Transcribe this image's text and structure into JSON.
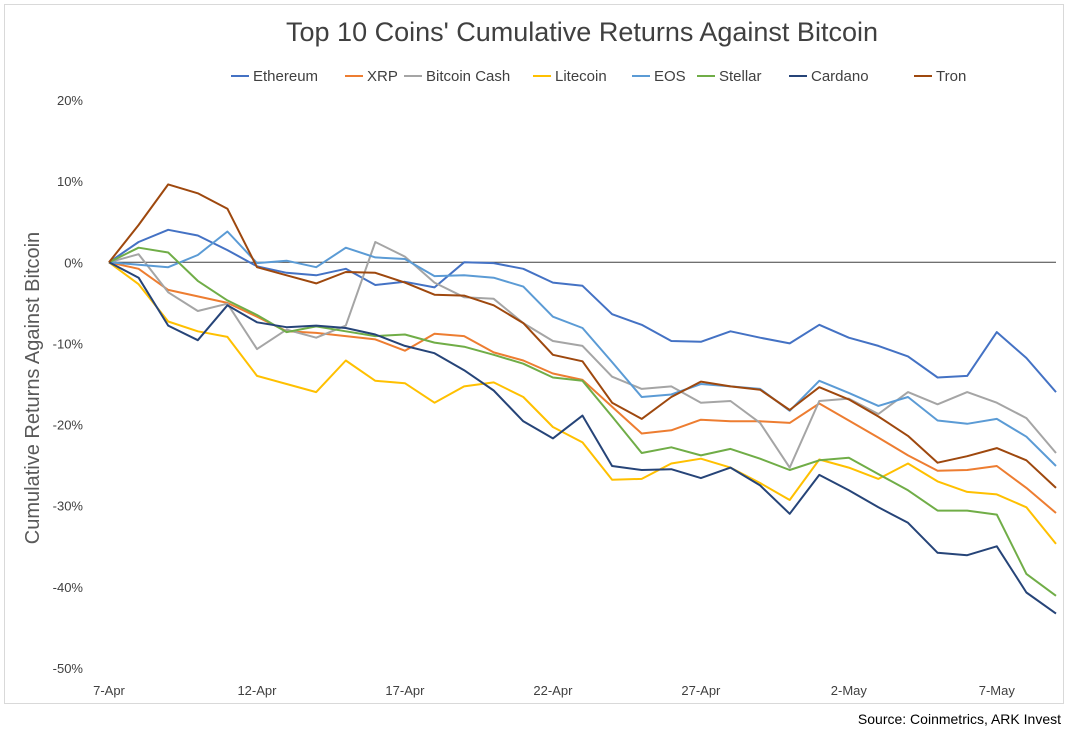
{
  "source_note": "Source: Coinmetrics, ARK Invest",
  "chart_data": {
    "type": "line",
    "title": "Top 10 Coins' Cumulative Returns Against Bitcoin",
    "xlabel": "",
    "ylabel": "Cumulative Returns Against Bitcoin",
    "ylim": [
      -50,
      20
    ],
    "yticks": [
      20,
      10,
      0,
      -10,
      -20,
      -30,
      -40,
      -50
    ],
    "ytick_format": "percent",
    "x_tick_labels": [
      "7-Apr",
      "12-Apr",
      "17-Apr",
      "22-Apr",
      "27-Apr",
      "2-May",
      "7-May"
    ],
    "x_tick_positions": [
      0,
      5,
      10,
      15,
      20,
      25,
      30
    ],
    "x": [
      0,
      1,
      2,
      3,
      4,
      5,
      6,
      7,
      8,
      9,
      10,
      11,
      12,
      13,
      14,
      15,
      16,
      17,
      18,
      19,
      20,
      21,
      22,
      23,
      24,
      25,
      26,
      27,
      28,
      29,
      30,
      31,
      32
    ],
    "legend_position": "top",
    "grid": false,
    "series": [
      {
        "name": "Ethereum",
        "color": "#4472C4",
        "values": [
          0,
          2.5,
          4,
          3.3,
          1.5,
          -0.5,
          -1.3,
          -1.6,
          -0.8,
          -2.8,
          -2.4,
          -3.1,
          0,
          -0.1,
          -0.8,
          -2.5,
          -2.9,
          -6.4,
          -7.7,
          -9.7,
          -9.8,
          -8.5,
          -9.3,
          -10,
          -7.7,
          -9.3,
          -10.3,
          -11.6,
          -14.2,
          -14,
          -8.6,
          -11.8,
          -16
        ]
      },
      {
        "name": "XRP",
        "color": "#ED7D31",
        "values": [
          0,
          -0.8,
          -3.4,
          -4.2,
          -5,
          -6.7,
          -8.5,
          -8.7,
          -9.1,
          -9.5,
          -10.9,
          -8.8,
          -9.1,
          -11.1,
          -12.1,
          -13.7,
          -14.5,
          -17.8,
          -21.1,
          -20.7,
          -19.4,
          -19.6,
          -19.6,
          -19.8,
          -17.4,
          -19.5,
          -21.6,
          -23.8,
          -25.7,
          -25.6,
          -25.1,
          -27.8,
          -30.9
        ]
      },
      {
        "name": "Bitcoin Cash",
        "color": "#A5A5A5",
        "values": [
          0,
          1,
          -3.7,
          -6,
          -5.1,
          -10.7,
          -8.3,
          -9.3,
          -7.8,
          2.5,
          0.7,
          -2.5,
          -4.3,
          -4.5,
          -7.5,
          -9.7,
          -10.3,
          -14.1,
          -15.6,
          -15.3,
          -17.3,
          -17.1,
          -19.8,
          -25.3,
          -17.1,
          -16.8,
          -18.7,
          -16,
          -17.5,
          -16,
          -17.3,
          -19.2,
          -23.5
        ]
      },
      {
        "name": "Litecoin",
        "color": "#FFC000",
        "values": [
          0,
          -2.7,
          -7.3,
          -8.5,
          -9.2,
          -14,
          -15,
          -16,
          -12.1,
          -14.6,
          -14.9,
          -17.3,
          -15.3,
          -14.8,
          -16.6,
          -20.3,
          -22.2,
          -26.8,
          -26.7,
          -24.8,
          -24.2,
          -25.3,
          -27.2,
          -29.3,
          -24.3,
          -25.3,
          -26.7,
          -24.8,
          -27,
          -28.3,
          -28.6,
          -30.2,
          -34.7
        ]
      },
      {
        "name": "EOS",
        "color": "#5B9BD5",
        "values": [
          0,
          -0.3,
          -0.6,
          0.9,
          3.8,
          -0.1,
          0.2,
          -0.6,
          1.8,
          0.6,
          0.4,
          -1.7,
          -1.6,
          -1.9,
          -3,
          -6.7,
          -8.1,
          -12.3,
          -16.6,
          -16.3,
          -15,
          -15.3,
          -15.6,
          -18.3,
          -14.6,
          -16.1,
          -17.7,
          -16.6,
          -19.5,
          -19.9,
          -19.3,
          -21.5,
          -25.1
        ]
      },
      {
        "name": "Stellar",
        "color": "#70AD47",
        "values": [
          0,
          1.8,
          1.2,
          -2.3,
          -4.7,
          -6.5,
          -8.6,
          -7.9,
          -8.5,
          -9.1,
          -8.9,
          -9.9,
          -10.4,
          -11.4,
          -12.5,
          -14.2,
          -14.6,
          -19,
          -23.5,
          -22.8,
          -23.8,
          -23,
          -24.2,
          -25.6,
          -24.4,
          -24.1,
          -26.1,
          -28.1,
          -30.6,
          -30.6,
          -31.1,
          -38.4,
          -41.1
        ]
      },
      {
        "name": "Cardano",
        "color": "#264478",
        "values": [
          0,
          -1.9,
          -7.8,
          -9.6,
          -5.3,
          -7.4,
          -8,
          -7.8,
          -8.1,
          -8.9,
          -10.3,
          -11.2,
          -13.3,
          -15.8,
          -19.6,
          -21.7,
          -18.9,
          -25.1,
          -25.6,
          -25.5,
          -26.6,
          -25.3,
          -27.5,
          -31,
          -26.2,
          -28.1,
          -30.2,
          -32.1,
          -35.8,
          -36.1,
          -35,
          -40.7,
          -43.3
        ]
      },
      {
        "name": "Tron",
        "color": "#9E480E",
        "values": [
          0,
          4.6,
          9.6,
          8.5,
          6.6,
          -0.6,
          -1.6,
          -2.6,
          -1.2,
          -1.3,
          -2.5,
          -4,
          -4.1,
          -5.3,
          -7.5,
          -11.4,
          -12.2,
          -17.3,
          -19.3,
          -16.6,
          -14.7,
          -15.3,
          -15.7,
          -18.2,
          -15.4,
          -16.9,
          -19,
          -21.4,
          -24.7,
          -23.9,
          -22.9,
          -24.4,
          -27.8
        ]
      }
    ]
  }
}
